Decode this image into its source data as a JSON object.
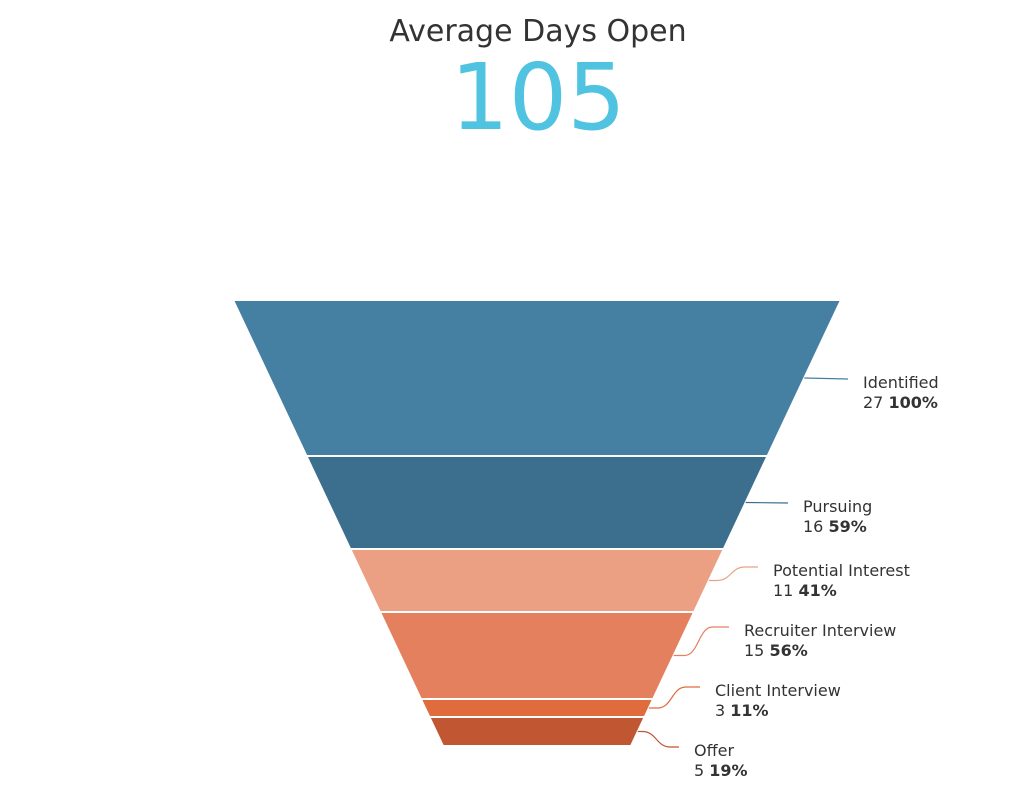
{
  "header": {
    "title": "Average Days Open",
    "value": "105"
  },
  "colors": {
    "title": "#333333",
    "value": "#4fc3df"
  },
  "chart_data": {
    "type": "funnel",
    "stages": [
      {
        "name": "Identified",
        "count": "27",
        "percent": "100%",
        "color": "#4580a3"
      },
      {
        "name": "Pursuing",
        "count": "16",
        "percent": "59%",
        "color": "#3b6f8d"
      },
      {
        "name": "Potential Interest",
        "count": "11",
        "percent": "41%",
        "color": "#eba084"
      },
      {
        "name": "Recruiter Interview",
        "count": "15",
        "percent": "56%",
        "color": "#e5805f"
      },
      {
        "name": "Client Interview",
        "count": "3",
        "percent": "11%",
        "color": "#e06b3d"
      },
      {
        "name": "Offer",
        "count": "5",
        "percent": "19%",
        "color": "#c15632"
      }
    ]
  }
}
